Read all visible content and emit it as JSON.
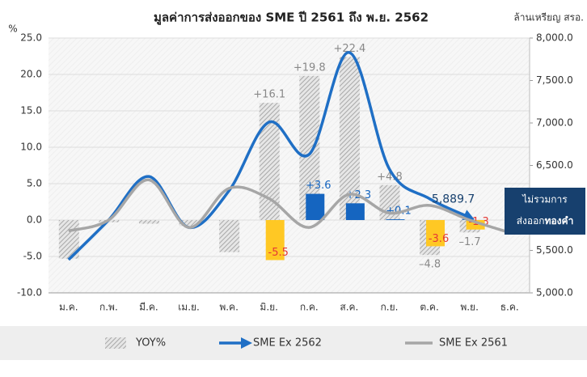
{
  "chart_data": {
    "type": "combo",
    "title": "มูลค่าการส่งออกของ SME ปี 2561 ถึง พ.ย. 2562",
    "y_label": "%",
    "y2_label": "ล้านเหรียญ สรอ.",
    "categories": [
      "ม.ค.",
      "ก.พ.",
      "มี.ค.",
      "เม.ย.",
      "พ.ค.",
      "มิ.ย.",
      "ก.ค.",
      "ส.ค.",
      "ก.ย.",
      "ต.ค.",
      "พ.ย.",
      "ธ.ค."
    ],
    "ylim": [
      -10,
      25
    ],
    "yticks": [
      {
        "value": -10,
        "label": "-10.0"
      },
      {
        "value": -5,
        "label": "-5.0"
      },
      {
        "value": 0,
        "label": "0.0"
      },
      {
        "value": 5,
        "label": "5.0"
      },
      {
        "value": 10,
        "label": "10.0"
      },
      {
        "value": 15,
        "label": "15.0"
      },
      {
        "value": 20,
        "label": "20.0"
      },
      {
        "value": 25,
        "label": "25.0"
      }
    ],
    "y2lim": [
      5000,
      8000
    ],
    "y2ticks": [
      {
        "value": 5000,
        "label": "5,000.0"
      },
      {
        "value": 5500,
        "label": "5,500.0"
      },
      {
        "value": 6000,
        "label": "6,000.0"
      },
      {
        "value": 6500,
        "label": "6,500.0"
      },
      {
        "value": 7000,
        "label": "7,000.0"
      },
      {
        "value": 7500,
        "label": "7,500.0"
      },
      {
        "value": 8000,
        "label": "8,000.0"
      }
    ],
    "grid": true,
    "series": [
      {
        "name": "YOY%",
        "type": "bar",
        "color": "#b5b5b5",
        "values": [
          -5.3,
          -0.3,
          -0.5,
          -0.8,
          -4.4,
          16.1,
          19.8,
          22.4,
          4.8,
          -4.8,
          -1.7,
          null
        ],
        "value_labels": [
          null,
          null,
          null,
          null,
          null,
          "+16.1",
          "+19.8",
          "+22.4",
          "+4.8",
          "–4.8",
          "–1.7",
          null
        ]
      },
      {
        "type": "bar",
        "colors": [
          null,
          null,
          null,
          null,
          null,
          "#ffc824",
          "#1565c0",
          "#1565c0",
          "#1565c0",
          "#ffc824",
          "#ffc824",
          null
        ],
        "label_colors": [
          null,
          null,
          null,
          null,
          null,
          "#e53935",
          "#1565c0",
          "#1565c0",
          "#1565c0",
          "#e53935",
          "#e53935",
          null
        ],
        "values": [
          null,
          null,
          null,
          null,
          null,
          -5.5,
          3.6,
          2.3,
          0.1,
          -3.6,
          -1.3,
          null
        ],
        "value_labels": [
          null,
          null,
          null,
          null,
          null,
          "-5.5",
          "+3.6",
          "+2.3",
          "+0.1",
          "-3.6",
          "-1.3",
          null
        ]
      },
      {
        "name": "SME Ex 2562",
        "type": "line",
        "axis": "y2",
        "color": "#1f6fc5",
        "arrow": true,
        "values": [
          5390,
          5857,
          6370,
          5770,
          6200,
          7010,
          6630,
          7830,
          6460,
          6110,
          5889.7,
          null
        ],
        "value_labels": [
          null,
          null,
          null,
          null,
          null,
          null,
          null,
          null,
          null,
          null,
          "5,889.7",
          null
        ]
      },
      {
        "name": "SME Ex 2561",
        "type": "line",
        "axis": "y2",
        "color": "#a6a6a6",
        "values": [
          5730,
          5857,
          6330,
          5770,
          6230,
          6110,
          5770,
          6160,
          5940,
          6030,
          5857,
          5710
        ]
      }
    ],
    "annotation": {
      "line1": "ไม่รวมการ",
      "line2": "ส่งออก",
      "line2_bold": "ทองคำ"
    }
  }
}
